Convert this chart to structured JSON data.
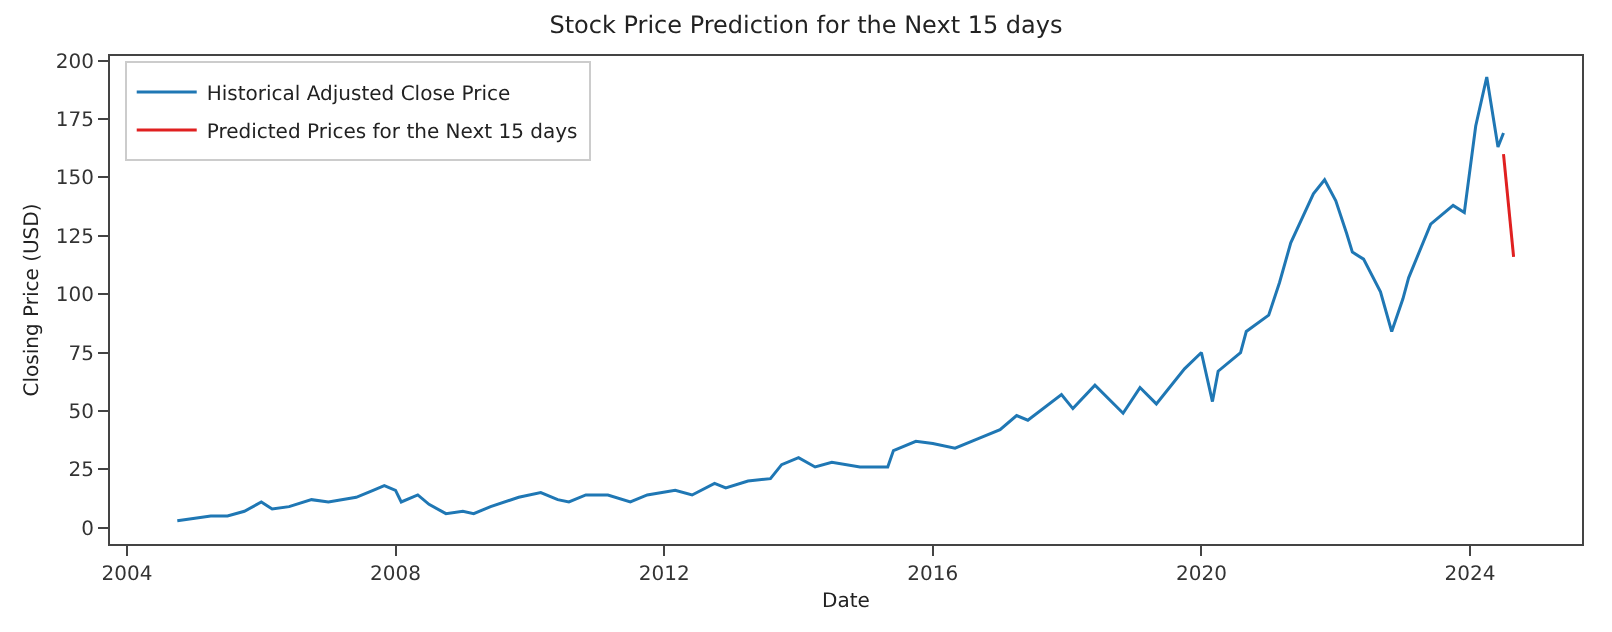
{
  "chart_data": {
    "type": "line",
    "title": "Stock Price Prediction for the Next 15 days",
    "xlabel": "Date",
    "ylabel": "Closing Price (USD)",
    "xlim": [
      "2003-10-01",
      "2025-09-01"
    ],
    "xticks": [
      "2004",
      "2008",
      "2012",
      "2016",
      "2020",
      "2024"
    ],
    "ylim": [
      -7,
      202
    ],
    "yticks": [
      0,
      25,
      50,
      75,
      100,
      125,
      150,
      175,
      200
    ],
    "grid": false,
    "legend": "top left",
    "line_style": "solid",
    "series": [
      {
        "name": "Historical Adjusted Close Price",
        "color": "#1f77b4",
        "x": [
          "2004-10",
          "2005-04",
          "2005-07",
          "2005-10",
          "2006-01",
          "2006-03",
          "2006-06",
          "2006-10",
          "2007-01",
          "2007-06",
          "2007-09",
          "2007-11",
          "2008-01",
          "2008-02",
          "2008-05",
          "2008-07",
          "2008-10",
          "2009-01",
          "2009-03",
          "2009-06",
          "2009-11",
          "2010-03",
          "2010-06",
          "2010-08",
          "2010-11",
          "2011-03",
          "2011-07",
          "2011-10",
          "2012-03",
          "2012-06",
          "2012-10",
          "2012-12",
          "2013-04",
          "2013-08",
          "2013-10",
          "2014-01",
          "2014-04",
          "2014-07",
          "2014-12",
          "2015-05",
          "2015-06",
          "2015-10",
          "2016-01",
          "2016-05",
          "2016-09",
          "2017-01",
          "2017-04",
          "2017-06",
          "2017-12",
          "2018-02",
          "2018-06",
          "2018-11",
          "2019-02",
          "2019-05",
          "2019-10",
          "2020-01",
          "2020-03",
          "2020-04",
          "2020-08",
          "2020-09",
          "2021-01",
          "2021-03",
          "2021-05",
          "2021-09",
          "2021-11",
          "2022-01",
          "2022-03",
          "2022-04",
          "2022-06",
          "2022-09",
          "2022-11",
          "2023-01",
          "2023-02",
          "2023-06",
          "2023-10",
          "2023-12",
          "2024-02",
          "2024-04",
          "2024-06",
          "2024-07"
        ],
        "values": [
          3,
          5,
          5,
          7,
          11,
          8,
          9,
          12,
          11,
          13,
          16,
          18,
          16,
          11,
          14,
          10,
          6,
          7,
          6,
          9,
          13,
          15,
          12,
          11,
          14,
          14,
          11,
          14,
          16,
          14,
          19,
          17,
          20,
          21,
          27,
          30,
          26,
          28,
          26,
          26,
          33,
          37,
          36,
          34,
          38,
          42,
          48,
          46,
          57,
          51,
          61,
          49,
          60,
          53,
          68,
          75,
          54,
          67,
          75,
          84,
          91,
          105,
          122,
          143,
          149,
          140,
          126,
          118,
          115,
          101,
          84,
          98,
          107,
          130,
          138,
          135,
          172,
          193,
          163,
          169
        ]
      },
      {
        "name": "Predicted Prices for the Next 15 days",
        "color": "#e02020",
        "x": [
          "2024-07-01",
          "2024-08-25"
        ],
        "values": [
          160,
          116
        ]
      }
    ]
  }
}
